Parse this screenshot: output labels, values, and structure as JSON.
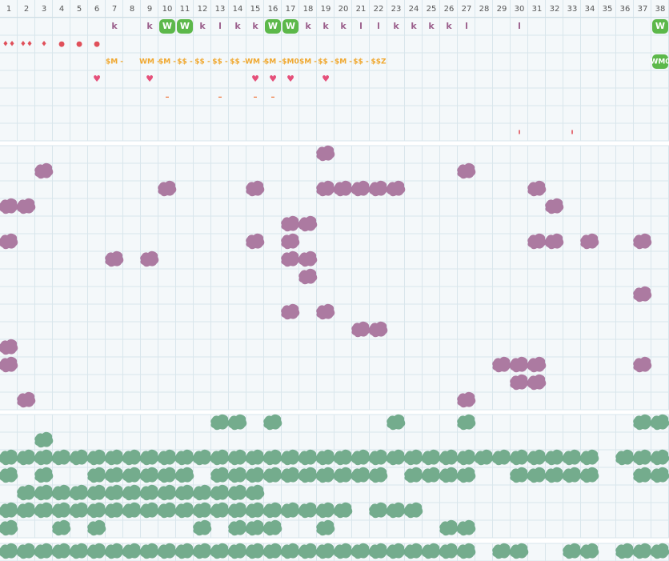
{
  "columns": [
    1,
    2,
    3,
    4,
    5,
    6,
    7,
    8,
    9,
    10,
    11,
    12,
    13,
    14,
    15,
    16,
    17,
    18,
    19,
    20,
    21,
    22,
    23,
    24,
    25,
    26,
    27,
    28,
    29,
    30,
    31,
    32,
    33,
    34,
    35,
    36,
    37,
    38
  ],
  "top_rows": [
    {
      "color": "#9b5f8c",
      "size": 11,
      "cells": [
        {
          "col": 7,
          "text": "k"
        },
        {
          "col": 9,
          "text": "k"
        },
        {
          "col": 10,
          "text": "W",
          "badge": true
        },
        {
          "col": 11,
          "text": "W",
          "badge": true
        },
        {
          "col": 12,
          "text": "k"
        },
        {
          "col": 13,
          "text": "l"
        },
        {
          "col": 14,
          "text": "k"
        },
        {
          "col": 15,
          "text": "k"
        },
        {
          "col": 16,
          "text": "W",
          "badge": true
        },
        {
          "col": 17,
          "text": "W",
          "badge": true
        },
        {
          "col": 18,
          "text": "k"
        },
        {
          "col": 19,
          "text": "k"
        },
        {
          "col": 20,
          "text": "k"
        },
        {
          "col": 21,
          "text": "l"
        },
        {
          "col": 22,
          "text": "l"
        },
        {
          "col": 23,
          "text": "k"
        },
        {
          "col": 24,
          "text": "k"
        },
        {
          "col": 25,
          "text": "k"
        },
        {
          "col": 26,
          "text": "k"
        },
        {
          "col": 27,
          "text": "l"
        },
        {
          "col": 30,
          "text": "l"
        },
        {
          "col": 38,
          "text": "W",
          "badge": true
        }
      ]
    },
    {
      "color": "#e0505a",
      "size": 9,
      "cells": [
        {
          "col": 1,
          "text": "♦♦"
        },
        {
          "col": 2,
          "text": "♦♦"
        },
        {
          "col": 3,
          "text": "♦"
        },
        {
          "col": 4,
          "text": "●"
        },
        {
          "col": 5,
          "text": "●"
        },
        {
          "col": 6,
          "text": "●"
        }
      ]
    },
    {
      "color": "#f0a830",
      "size": 9,
      "cells": [
        {
          "col": 7,
          "text": "$M -"
        },
        {
          "col": 9,
          "text": "WM -"
        },
        {
          "col": 10,
          "text": "$M -"
        },
        {
          "col": 11,
          "text": "$$ -"
        },
        {
          "col": 12,
          "text": "$$ -"
        },
        {
          "col": 13,
          "text": "$$ -"
        },
        {
          "col": 14,
          "text": "$$ -"
        },
        {
          "col": 15,
          "text": "WM -"
        },
        {
          "col": 16,
          "text": "$M -"
        },
        {
          "col": 17,
          "text": "$M0"
        },
        {
          "col": 18,
          "text": "$M -"
        },
        {
          "col": 19,
          "text": "$$ -"
        },
        {
          "col": 20,
          "text": "$M -"
        },
        {
          "col": 21,
          "text": "$$ -"
        },
        {
          "col": 22,
          "text": "$$Z"
        },
        {
          "col": 38,
          "text": "WM0",
          "badge": true
        }
      ]
    },
    {
      "color": "#e5507a",
      "size": 11,
      "cells": [
        {
          "col": 6,
          "text": "♥"
        },
        {
          "col": 9,
          "text": "♥"
        },
        {
          "col": 15,
          "text": "♥"
        },
        {
          "col": 16,
          "text": "♥"
        },
        {
          "col": 17,
          "text": "♥"
        },
        {
          "col": 19,
          "text": "♥"
        }
      ]
    },
    {
      "color": "#f07a40",
      "size": 10,
      "cells": [
        {
          "col": 10,
          "text": "–"
        },
        {
          "col": 13,
          "text": "–"
        },
        {
          "col": 15,
          "text": "–"
        },
        {
          "col": 16,
          "text": "–"
        }
      ]
    },
    {
      "color": "#e0505a",
      "size": 10,
      "cells": []
    },
    {
      "color": "#e0505a",
      "size": 9,
      "cells": [
        {
          "col": 30,
          "text": "ı"
        },
        {
          "col": 33,
          "text": "ı"
        }
      ]
    }
  ],
  "purple_rows": [
    [
      19
    ],
    [
      3,
      27
    ],
    [
      10,
      15,
      19,
      20,
      21,
      22,
      23,
      31
    ],
    [
      1,
      2,
      32
    ],
    [
      17,
      18
    ],
    [
      1,
      15,
      17,
      31,
      32,
      34,
      37
    ],
    [
      7,
      9,
      17,
      18
    ],
    [
      18
    ],
    [
      37
    ],
    [
      17,
      19
    ],
    [
      21,
      22
    ],
    [
      1
    ],
    [
      1,
      29,
      30,
      31,
      37
    ],
    [
      30,
      31
    ],
    [
      2,
      27
    ]
  ],
  "green_rows": [
    [
      13,
      14,
      16,
      23,
      27,
      37,
      38
    ],
    [
      3
    ],
    [
      1,
      2,
      3,
      4,
      5,
      6,
      7,
      8,
      9,
      10,
      11,
      12,
      13,
      14,
      15,
      16,
      17,
      18,
      19,
      20,
      21,
      22,
      23,
      24,
      25,
      26,
      27,
      28,
      29,
      30,
      31,
      32,
      33,
      34,
      36,
      37,
      38
    ],
    [
      1,
      3,
      6,
      7,
      8,
      9,
      10,
      11,
      13,
      14,
      15,
      16,
      17,
      18,
      19,
      20,
      21,
      22,
      24,
      25,
      26,
      27,
      30,
      31,
      32,
      33,
      34,
      37,
      38
    ],
    [
      2,
      3,
      4,
      5,
      6,
      7,
      8,
      9,
      10,
      11,
      12,
      13,
      14,
      15
    ],
    [
      1,
      2,
      3,
      4,
      5,
      6,
      7,
      8,
      9,
      10,
      11,
      12,
      13,
      14,
      15,
      16,
      17,
      18,
      19,
      20,
      22,
      23,
      24
    ],
    [
      1,
      4,
      6,
      12,
      14,
      15,
      16,
      19,
      26,
      27
    ]
  ],
  "last_row": [
    1,
    2,
    3,
    4,
    5,
    6,
    7,
    8,
    9,
    10,
    11,
    12,
    13,
    14,
    15,
    16,
    17,
    18,
    19,
    20,
    21,
    22,
    23,
    24,
    25,
    26,
    27,
    29,
    30,
    33,
    34,
    36,
    37,
    38
  ]
}
